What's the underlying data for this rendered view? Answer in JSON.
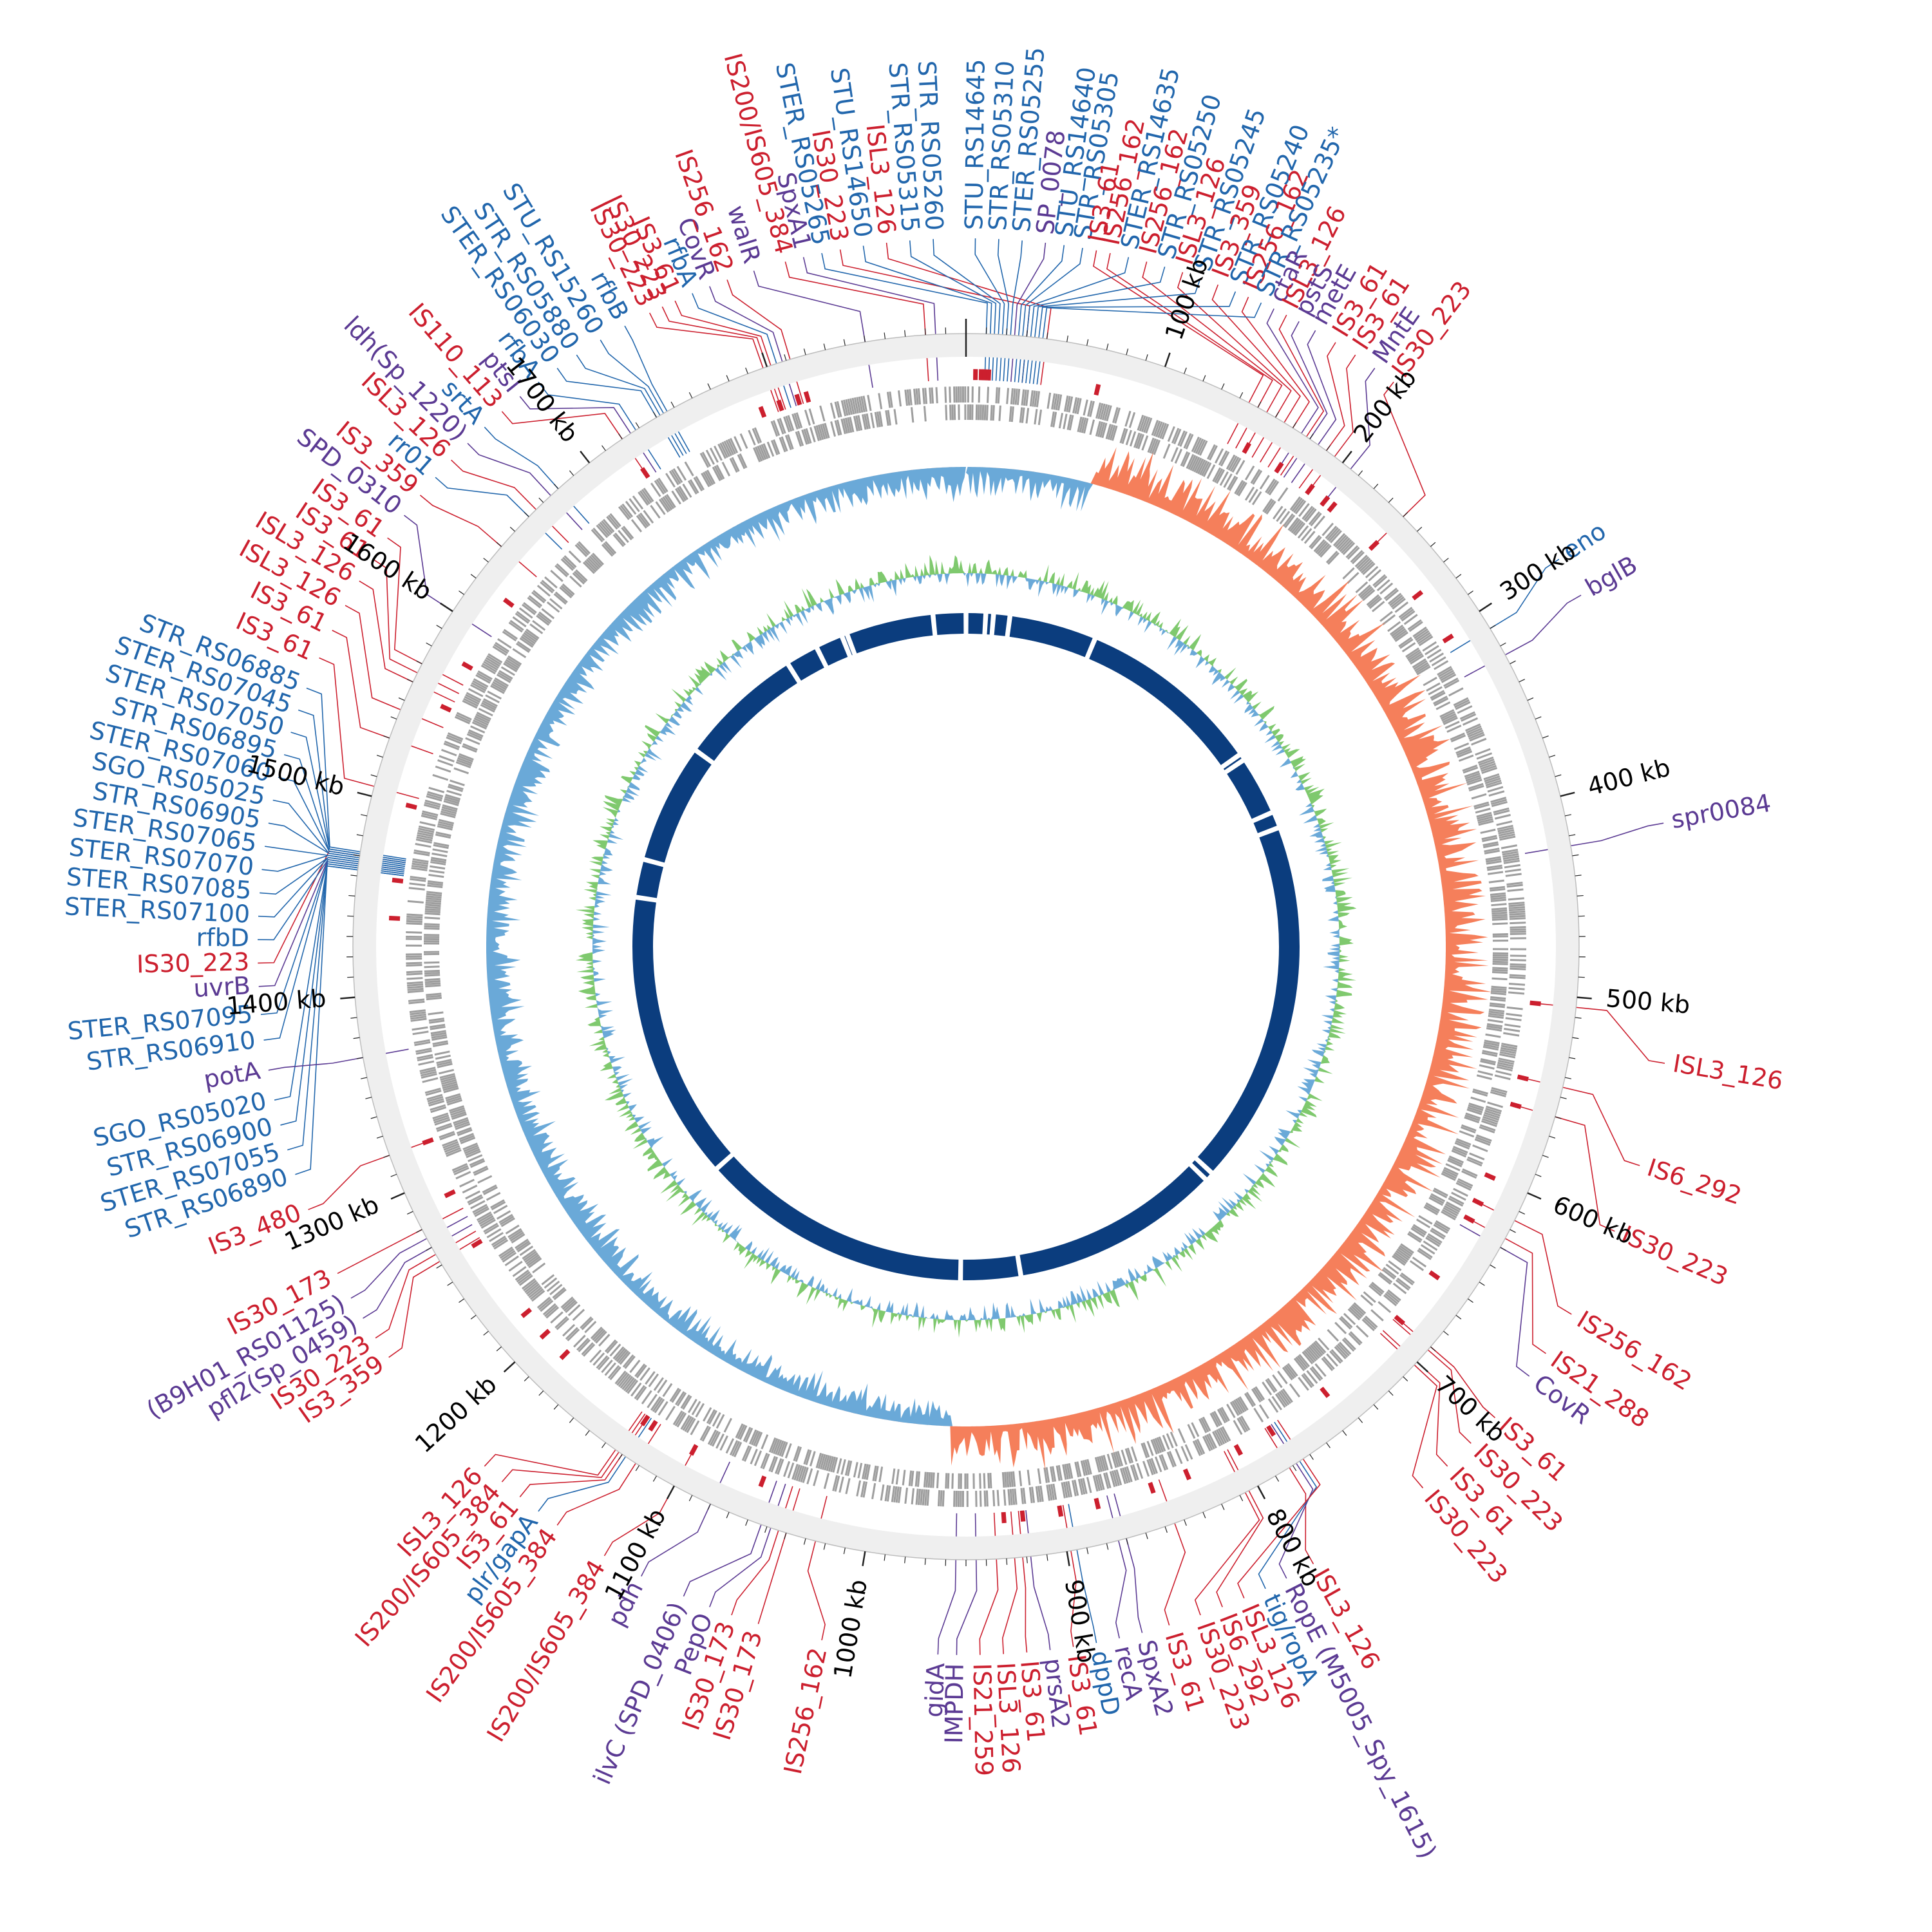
{
  "colors": {
    "is": "#cc1f2e",
    "locus": "#2166ac",
    "gene": "#5b3a93",
    "backbone": "#efefef",
    "cds": "#9e9e9e",
    "gc_pos": "#6aa9d8",
    "gc_neg": "#f57f5b",
    "skew_pos": "#7fc96e",
    "skew_neg": "#6aa9d8",
    "blocks": "#0b3d7e"
  },
  "genome": {
    "length_kb": 1900
  },
  "ticks": [
    {
      "kb": 100,
      "label": "100 kb"
    },
    {
      "kb": 200,
      "label": "200 kb"
    },
    {
      "kb": 300,
      "label": "300 kb"
    },
    {
      "kb": 400,
      "label": "400 kb"
    },
    {
      "kb": 500,
      "label": "500 kb"
    },
    {
      "kb": 600,
      "label": "600 kb"
    },
    {
      "kb": 700,
      "label": "700 kb"
    },
    {
      "kb": 800,
      "label": "800 kb"
    },
    {
      "kb": 900,
      "label": "900 kb"
    },
    {
      "kb": 1000,
      "label": "1000 kb"
    },
    {
      "kb": 1100,
      "label": "1100 kb"
    },
    {
      "kb": 1200,
      "label": "1200 kb"
    },
    {
      "kb": 1300,
      "label": "1300 kb"
    },
    {
      "kb": 1400,
      "label": "1400 kb"
    },
    {
      "kb": 1500,
      "label": "1500 kb"
    },
    {
      "kb": 1600,
      "label": "1600 kb"
    },
    {
      "kb": 1700,
      "label": "1700 kb"
    }
  ],
  "labels": [
    {
      "text": "eno",
      "kind": "locus",
      "feature_kb": 310,
      "label_kb": 300
    },
    {
      "text": "bglB",
      "kind": "gene",
      "feature_kb": 325,
      "label_kb": 318
    },
    {
      "text": "spr0084",
      "kind": "gene",
      "feature_kb": 425,
      "label_kb": 422
    },
    {
      "text": "ISL3_126",
      "kind": "is",
      "feature_kb": 505,
      "label_kb": 525
    },
    {
      "text": "IS6_292",
      "kind": "is",
      "feature_kb": 545,
      "label_kb": 570
    },
    {
      "text": "IS30_223",
      "kind": "is",
      "feature_kb": 560,
      "label_kb": 600
    },
    {
      "text": "IS256_162",
      "kind": "is",
      "feature_kb": 615,
      "label_kb": 640
    },
    {
      "text": "IS21_288",
      "kind": "is",
      "feature_kb": 625,
      "label_kb": 660
    },
    {
      "text": "CovR",
      "kind": "gene",
      "feature_kb": 630,
      "label_kb": 672
    },
    {
      "text": "IS3_61",
      "kind": "is",
      "feature_kb": 690,
      "label_kb": 695
    },
    {
      "text": "IS30_223",
      "kind": "is",
      "feature_kb": 692,
      "label_kb": 710
    },
    {
      "text": "IS3_61",
      "kind": "is",
      "feature_kb": 700,
      "label_kb": 724
    },
    {
      "text": "IS30_223",
      "kind": "is",
      "feature_kb": 702,
      "label_kb": 738
    },
    {
      "text": "ISL3_126",
      "kind": "is",
      "feature_kb": 782,
      "label_kb": 795
    },
    {
      "text": "RopE (M5005_Spy_1615)",
      "kind": "gene",
      "feature_kb": 778,
      "label_kb": 808
    },
    {
      "text": "tig/ropA",
      "kind": "locus",
      "feature_kb": 776,
      "label_kb": 818
    },
    {
      "text": "ISL3_126",
      "kind": "is",
      "feature_kb": 774,
      "label_kb": 828
    },
    {
      "text": "IS6_292",
      "kind": "is",
      "feature_kb": 805,
      "label_kb": 838
    },
    {
      "text": "IS30_223",
      "kind": "is",
      "feature_kb": 807,
      "label_kb": 848
    },
    {
      "text": "IS3_61",
      "kind": "is",
      "feature_kb": 845,
      "label_kb": 862
    },
    {
      "text": "SpxA2",
      "kind": "gene",
      "feature_kb": 870,
      "label_kb": 874
    },
    {
      "text": "recA",
      "kind": "gene",
      "feature_kb": 874,
      "label_kb": 884
    },
    {
      "text": "dppD",
      "kind": "locus",
      "feature_kb": 895,
      "label_kb": 894
    },
    {
      "text": "IS3_61",
      "kind": "is",
      "feature_kb": 898,
      "label_kb": 904
    },
    {
      "text": "prsA2",
      "kind": "gene",
      "feature_kb": 918,
      "label_kb": 914
    },
    {
      "text": "IS3_61",
      "kind": "is",
      "feature_kb": 922,
      "label_kb": 924
    },
    {
      "text": "ISL3_126",
      "kind": "is",
      "feature_kb": 926,
      "label_kb": 934
    },
    {
      "text": "IS21_259",
      "kind": "is",
      "feature_kb": 935,
      "label_kb": 944
    },
    {
      "text": "IMPDH",
      "kind": "gene",
      "feature_kb": 945,
      "label_kb": 954
    },
    {
      "text": "gidA",
      "kind": "gene",
      "feature_kb": 955,
      "label_kb": 962
    },
    {
      "text": "IS256_162",
      "kind": "is",
      "feature_kb": 1025,
      "label_kb": 1012
    },
    {
      "text": "IS30_173",
      "kind": "is",
      "feature_kb": 1040,
      "label_kb": 1040
    },
    {
      "text": "IS30_173",
      "kind": "is",
      "feature_kb": 1044,
      "label_kb": 1052
    },
    {
      "text": "PepO",
      "kind": "gene",
      "feature_kb": 1048,
      "label_kb": 1062
    },
    {
      "text": "ilvC (SPD_0406)",
      "kind": "gene",
      "feature_kb": 1053,
      "label_kb": 1074
    },
    {
      "text": "pdh",
      "kind": "gene",
      "feature_kb": 1080,
      "label_kb": 1094
    },
    {
      "text": "IS200/IS605_384",
      "kind": "is",
      "feature_kb": 1100,
      "label_kb": 1112
    },
    {
      "text": "IS200/IS605_384",
      "kind": "is",
      "feature_kb": 1122,
      "label_kb": 1136
    },
    {
      "text": "plr/gapA",
      "kind": "locus",
      "feature_kb": 1128,
      "label_kb": 1146
    },
    {
      "text": "IS3_61",
      "kind": "is",
      "feature_kb": 1130,
      "label_kb": 1156
    },
    {
      "text": "IS200/IS605_384",
      "kind": "is",
      "feature_kb": 1132,
      "label_kb": 1166
    },
    {
      "text": "ISL3_126",
      "kind": "is",
      "feature_kb": 1134,
      "label_kb": 1176
    },
    {
      "text": "IS3_359",
      "kind": "is",
      "feature_kb": 1262,
      "label_kb": 1238
    },
    {
      "text": "IS30_223",
      "kind": "is",
      "feature_kb": 1266,
      "label_kb": 1248
    },
    {
      "text": "pfl2(Sp_0459)",
      "kind": "gene",
      "feature_kb": 1270,
      "label_kb": 1258
    },
    {
      "text": "(B9H01_RS01125)",
      "kind": "gene",
      "feature_kb": 1275,
      "label_kb": 1268
    },
    {
      "text": "IS30_173",
      "kind": "is",
      "feature_kb": 1280,
      "label_kb": 1280
    },
    {
      "text": "IS3_480",
      "kind": "is",
      "feature_kb": 1320,
      "label_kb": 1310
    },
    {
      "text": "STR_RS06890",
      "kind": "locus",
      "feature_kb": 1463,
      "label_kb": 1326
    },
    {
      "text": "STER_RS07055",
      "kind": "locus",
      "feature_kb": 1463,
      "label_kb": 1337
    },
    {
      "text": "STR_RS06900",
      "kind": "locus",
      "feature_kb": 1464,
      "label_kb": 1348
    },
    {
      "text": "SGO_RS05020",
      "kind": "locus",
      "feature_kb": 1464,
      "label_kb": 1359
    },
    {
      "text": "potA",
      "kind": "gene",
      "feature_kb": 1370,
      "label_kb": 1372
    },
    {
      "text": "STR_RS06910",
      "kind": "locus",
      "feature_kb": 1465,
      "label_kb": 1385
    },
    {
      "text": "STER_RS07095",
      "kind": "locus",
      "feature_kb": 1465,
      "label_kb": 1396
    },
    {
      "text": "uvrB",
      "kind": "gene",
      "feature_kb": 1466,
      "label_kb": 1408
    },
    {
      "text": "IS30_223",
      "kind": "is",
      "feature_kb": 1470,
      "label_kb": 1418
    },
    {
      "text": "rfbD",
      "kind": "locus",
      "feature_kb": 1466,
      "label_kb": 1428
    },
    {
      "text": "STER_RS07100",
      "kind": "locus",
      "feature_kb": 1467,
      "label_kb": 1438
    },
    {
      "text": "STER_RS07085",
      "kind": "locus",
      "feature_kb": 1467,
      "label_kb": 1448
    },
    {
      "text": "STER_RS07070",
      "kind": "locus",
      "feature_kb": 1468,
      "label_kb": 1458
    },
    {
      "text": "STER_RS07065",
      "kind": "locus",
      "feature_kb": 1468,
      "label_kb": 1468
    },
    {
      "text": "STR_RS06905",
      "kind": "locus",
      "feature_kb": 1469,
      "label_kb": 1478
    },
    {
      "text": "SGO_RS05025",
      "kind": "locus",
      "feature_kb": 1469,
      "label_kb": 1488
    },
    {
      "text": "STER_RS07060",
      "kind": "locus",
      "feature_kb": 1470,
      "label_kb": 1498
    },
    {
      "text": "STR_RS06895",
      "kind": "locus",
      "feature_kb": 1470,
      "label_kb": 1508
    },
    {
      "text": "STER_RS07050",
      "kind": "locus",
      "feature_kb": 1471,
      "label_kb": 1518
    },
    {
      "text": "STER_RS07045",
      "kind": "locus",
      "feature_kb": 1471,
      "label_kb": 1528
    },
    {
      "text": "STR_RS06885",
      "kind": "locus",
      "feature_kb": 1472,
      "label_kb": 1538
    },
    {
      "text": "IS3_61",
      "kind": "is",
      "feature_kb": 1505,
      "label_kb": 1552
    },
    {
      "text": "IS3_61",
      "kind": "is",
      "feature_kb": 1530,
      "label_kb": 1565
    },
    {
      "text": "ISL3_126",
      "kind": "is",
      "feature_kb": 1545,
      "label_kb": 1577
    },
    {
      "text": "ISL3_126",
      "kind": "is",
      "feature_kb": 1560,
      "label_kb": 1589
    },
    {
      "text": "IS3_61",
      "kind": "is",
      "feature_kb": 1565,
      "label_kb": 1600
    },
    {
      "text": "IS3_61",
      "kind": "is",
      "feature_kb": 1570,
      "label_kb": 1611
    },
    {
      "text": "SPD_0310",
      "kind": "gene",
      "feature_kb": 1600,
      "label_kb": 1623
    },
    {
      "text": "IS3_359",
      "kind": "is",
      "feature_kb": 1640,
      "label_kb": 1634
    },
    {
      "text": "rr01",
      "kind": "locus",
      "feature_kb": 1660,
      "label_kb": 1644
    },
    {
      "text": "ISL3_126",
      "kind": "is",
      "feature_kb": 1665,
      "label_kb": 1654
    },
    {
      "text": "ldh(Sp_1220)",
      "kind": "gene",
      "feature_kb": 1675,
      "label_kb": 1664
    },
    {
      "text": "srtA",
      "kind": "locus",
      "feature_kb": 1680,
      "label_kb": 1674
    },
    {
      "text": "IS110_113",
      "kind": "is",
      "feature_kb": 1720,
      "label_kb": 1684
    },
    {
      "text": "ptsI",
      "kind": "gene",
      "feature_kb": 1725,
      "label_kb": 1694
    },
    {
      "text": "rfbA",
      "kind": "locus",
      "feature_kb": 1728,
      "label_kb": 1704
    },
    {
      "text": "STER_RS06030",
      "kind": "locus",
      "feature_kb": 1740,
      "label_kb": 1714
    },
    {
      "text": "STR_RS05880",
      "kind": "locus",
      "feature_kb": 1742,
      "label_kb": 1724
    },
    {
      "text": "STU_RS15260",
      "kind": "locus",
      "feature_kb": 1744,
      "label_kb": 1736
    },
    {
      "text": "rfbB",
      "kind": "locus",
      "feature_kb": 1746,
      "label_kb": 1748
    },
    {
      "text": "IS30_223",
      "kind": "is",
      "feature_kb": 1798,
      "label_kb": 1760
    },
    {
      "text": "IS30_223",
      "kind": "is",
      "feature_kb": 1800,
      "label_kb": 1766
    },
    {
      "text": "IS3_61",
      "kind": "is",
      "feature_kb": 1802,
      "label_kb": 1772
    },
    {
      "text": "rfbA",
      "kind": "locus",
      "feature_kb": 1805,
      "label_kb": 1780
    },
    {
      "text": "CovR",
      "kind": "gene",
      "feature_kb": 1808,
      "label_kb": 1788
    },
    {
      "text": "IS256_162",
      "kind": "is",
      "feature_kb": 1812,
      "label_kb": 1796
    },
    {
      "text": "walR",
      "kind": "gene",
      "feature_kb": 1850,
      "label_kb": 1808
    },
    {
      "text": "IS200/IS605_384",
      "kind": "is",
      "feature_kb": 1880,
      "label_kb": 1822
    },
    {
      "text": "SpxA1",
      "kind": "gene",
      "feature_kb": 1885,
      "label_kb": 1830
    },
    {
      "text": "STER_RS05265",
      "kind": "locus",
      "feature_kb": 10,
      "label_kb": 1838
    },
    {
      "text": "IS30_223",
      "kind": "is",
      "feature_kb": 30,
      "label_kb": 1846
    },
    {
      "text": "STU_RS14650",
      "kind": "locus",
      "feature_kb": 12,
      "label_kb": 1856
    },
    {
      "text": "ISL3_126",
      "kind": "is",
      "feature_kb": 40,
      "label_kb": 1866
    },
    {
      "text": "STR_RS05315",
      "kind": "locus",
      "feature_kb": 14,
      "label_kb": 1876
    },
    {
      "text": "STR_RS05260",
      "kind": "locus",
      "feature_kb": 16,
      "label_kb": 1886
    },
    {
      "text": "STU_RS14645",
      "kind": "locus",
      "feature_kb": 18,
      "label_kb": 4
    },
    {
      "text": "STR_RS05310",
      "kind": "locus",
      "feature_kb": 20,
      "label_kb": 14
    },
    {
      "text": "STER_RS05255",
      "kind": "locus",
      "feature_kb": 22,
      "label_kb": 24
    },
    {
      "text": "SP_0078",
      "kind": "gene",
      "feature_kb": 24,
      "label_kb": 34
    },
    {
      "text": "STU_RS14640",
      "kind": "locus",
      "feature_kb": 26,
      "label_kb": 42
    },
    {
      "text": "STR_RS05305",
      "kind": "locus",
      "feature_kb": 28,
      "label_kb": 50
    },
    {
      "text": "IS3_61",
      "kind": "is",
      "feature_kb": 145,
      "label_kb": 56
    },
    {
      "text": "IS256_162",
      "kind": "is",
      "feature_kb": 150,
      "label_kb": 62
    },
    {
      "text": "STER_RS14635",
      "kind": "locus",
      "feature_kb": 30,
      "label_kb": 70
    },
    {
      "text": "IS256_162",
      "kind": "is",
      "feature_kb": 155,
      "label_kb": 78
    },
    {
      "text": "STR_RS05250",
      "kind": "locus",
      "feature_kb": 32,
      "label_kb": 86
    },
    {
      "text": "ISL3_126",
      "kind": "is",
      "feature_kb": 160,
      "label_kb": 94
    },
    {
      "text": "STR_RS05245",
      "kind": "locus",
      "feature_kb": 34,
      "label_kb": 102
    },
    {
      "text": "IS3_359",
      "kind": "is",
      "feature_kb": 165,
      "label_kb": 110
    },
    {
      "text": "STR_RS05240",
      "kind": "locus",
      "feature_kb": 36,
      "label_kb": 118
    },
    {
      "text": "IS256_162",
      "kind": "is",
      "feature_kb": 170,
      "label_kb": 124
    },
    {
      "text": "STR_RS05235*",
      "kind": "locus",
      "feature_kb": 38,
      "label_kb": 130
    },
    {
      "text": "ctaR",
      "kind": "gene",
      "feature_kb": 175,
      "label_kb": 136
    },
    {
      "text": "ISL3_126",
      "kind": "is",
      "feature_kb": 178,
      "label_kb": 142
    },
    {
      "text": "pstS",
      "kind": "gene",
      "feature_kb": 180,
      "label_kb": 148
    },
    {
      "text": "metE",
      "kind": "gene",
      "feature_kb": 185,
      "label_kb": 156
    },
    {
      "text": "IS3_61",
      "kind": "is",
      "feature_kb": 190,
      "label_kb": 166
    },
    {
      "text": "IS3_61",
      "kind": "is",
      "feature_kb": 195,
      "label_kb": 176
    },
    {
      "text": "MntE",
      "kind": "gene",
      "feature_kb": 205,
      "label_kb": 186
    },
    {
      "text": "IS30_223",
      "kind": "is",
      "feature_kb": 240,
      "label_kb": 196
    }
  ],
  "is_markers": [
    5,
    8,
    10,
    12,
    70,
    155,
    175,
    195,
    205,
    210,
    240,
    275,
    303,
    505,
    545,
    560,
    600,
    615,
    625,
    660,
    690,
    745,
    780,
    800,
    830,
    850,
    880,
    900,
    920,
    930,
    1060,
    1100,
    1125,
    1130,
    1185,
    1200,
    1215,
    1260,
    1290,
    1320,
    1440,
    1460,
    1500,
    1555,
    1580,
    1620,
    1720,
    1790,
    1800,
    1810,
    1815
  ]
}
